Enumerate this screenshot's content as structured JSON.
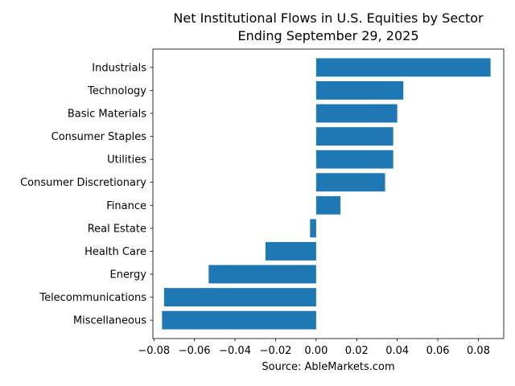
{
  "chart_data": {
    "type": "bar",
    "orientation": "horizontal",
    "title": [
      "Net Institutional Flows in U.S. Equities by Sector",
      "Ending September 29, 2025"
    ],
    "xlabel": "Source: AbleMarkets.com",
    "ylabel": "",
    "categories": [
      "Industrials",
      "Technology",
      "Basic Materials",
      "Consumer Staples",
      "Utilities",
      "Consumer Discretionary",
      "Finance",
      "Real Estate",
      "Health Care",
      "Energy",
      "Telecommunications",
      "Miscellaneous"
    ],
    "values": [
      0.086,
      0.043,
      0.04,
      0.038,
      0.038,
      0.034,
      0.012,
      -0.003,
      -0.025,
      -0.053,
      -0.075,
      -0.076
    ],
    "xlim": [
      -0.0805,
      0.0925
    ],
    "xticks": [
      -0.08,
      -0.06,
      -0.04,
      -0.02,
      0.0,
      0.02,
      0.04,
      0.06,
      0.08
    ],
    "xtick_labels": [
      "−0.08",
      "−0.06",
      "−0.04",
      "−0.02",
      "0.00",
      "0.02",
      "0.04",
      "0.06",
      "0.08"
    ],
    "bar_color": "#1f77b4",
    "grid": false,
    "legend": "none"
  }
}
